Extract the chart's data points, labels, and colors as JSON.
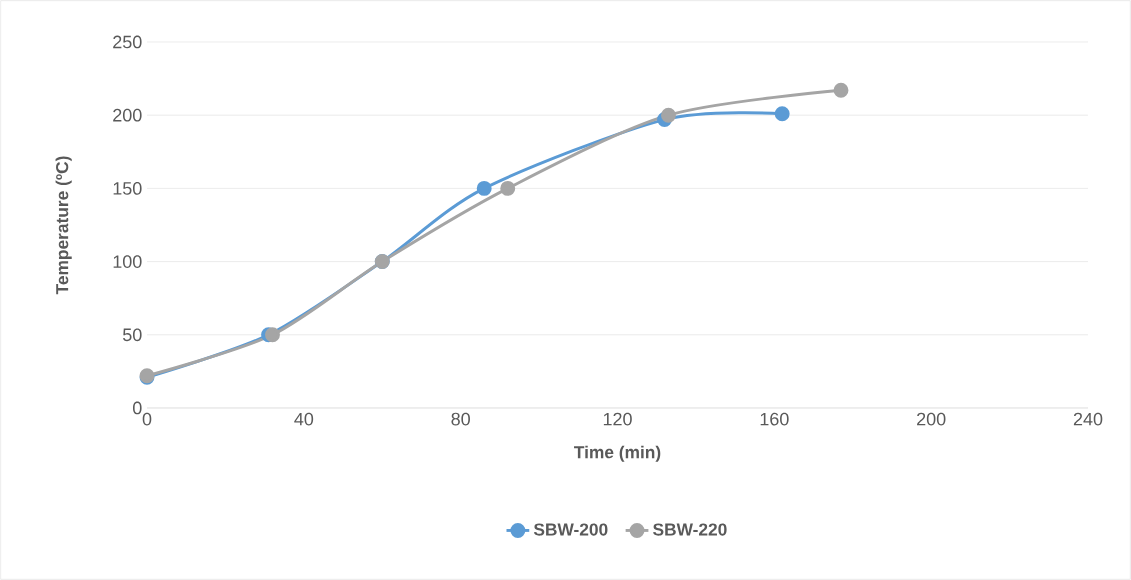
{
  "chart_data": {
    "type": "line",
    "xlabel": "Time (min)",
    "ylabel": "Temperature (ºC)",
    "xlim": [
      0,
      240
    ],
    "xticks": [
      0,
      40,
      80,
      120,
      160,
      200,
      240
    ],
    "ylim": [
      0,
      250
    ],
    "yticks": [
      0,
      50,
      100,
      150,
      200,
      250
    ],
    "grid": "y",
    "legend": "bottom",
    "marker": "circle",
    "line_style": "solid",
    "series": [
      {
        "name": "SBW-200",
        "color": "#5b9bd5",
        "x": [
          0,
          31,
          60,
          86,
          132,
          162
        ],
        "values": [
          21,
          50,
          100,
          150,
          197,
          201
        ]
      },
      {
        "name": "SBW-220",
        "color": "#a5a5a5",
        "x": [
          0,
          32,
          60,
          92,
          133,
          177
        ],
        "values": [
          22,
          50,
          100,
          150,
          200,
          217
        ]
      }
    ]
  }
}
